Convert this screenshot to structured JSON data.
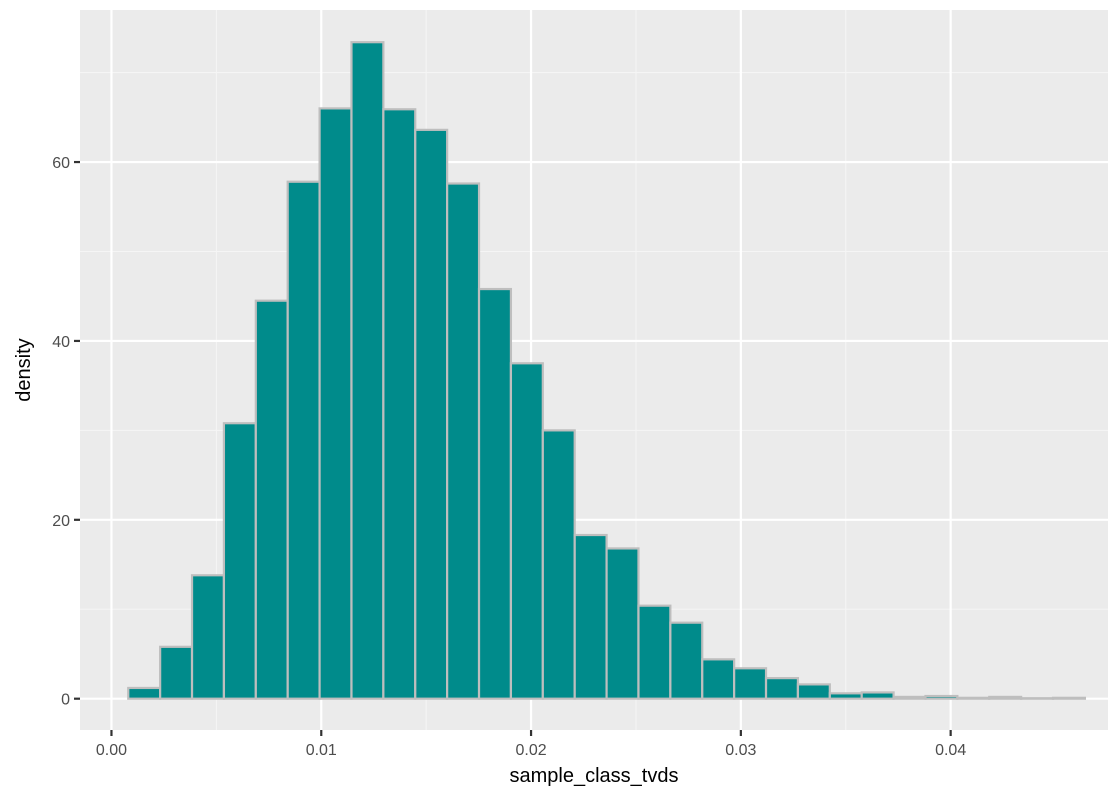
{
  "chart_data": {
    "type": "bar",
    "subtype": "histogram",
    "xlabel": "sample_class_tvds",
    "ylabel": "density",
    "xlim": [
      -0.0015,
      0.0475
    ],
    "ylim": [
      -3.5,
      77
    ],
    "x_ticks": [
      0.0,
      0.01,
      0.02,
      0.03,
      0.04
    ],
    "x_tick_labels": [
      "0.00",
      "0.01",
      "0.02",
      "0.03",
      "0.04"
    ],
    "y_ticks": [
      0,
      20,
      40,
      60
    ],
    "y_tick_labels": [
      "0",
      "20",
      "40",
      "60"
    ],
    "grid": true,
    "bin_width": 0.00152,
    "bins": [
      {
        "x0": 0.0008,
        "x1": 0.00232,
        "density": 1.2
      },
      {
        "x0": 0.00232,
        "x1": 0.00384,
        "density": 5.8
      },
      {
        "x0": 0.00384,
        "x1": 0.00536,
        "density": 13.8
      },
      {
        "x0": 0.00536,
        "x1": 0.00688,
        "density": 30.8
      },
      {
        "x0": 0.00688,
        "x1": 0.0084,
        "density": 44.5
      },
      {
        "x0": 0.0084,
        "x1": 0.00992,
        "density": 57.8
      },
      {
        "x0": 0.00992,
        "x1": 0.01144,
        "density": 66.0
      },
      {
        "x0": 0.01144,
        "x1": 0.01296,
        "density": 73.4
      },
      {
        "x0": 0.01296,
        "x1": 0.01448,
        "density": 65.9
      },
      {
        "x0": 0.01448,
        "x1": 0.016,
        "density": 63.6
      },
      {
        "x0": 0.016,
        "x1": 0.01752,
        "density": 57.6
      },
      {
        "x0": 0.01752,
        "x1": 0.01904,
        "density": 45.8
      },
      {
        "x0": 0.01904,
        "x1": 0.02056,
        "density": 37.5
      },
      {
        "x0": 0.02056,
        "x1": 0.02208,
        "density": 30.0
      },
      {
        "x0": 0.02208,
        "x1": 0.0236,
        "density": 18.3
      },
      {
        "x0": 0.0236,
        "x1": 0.02512,
        "density": 16.8
      },
      {
        "x0": 0.02512,
        "x1": 0.02664,
        "density": 10.4
      },
      {
        "x0": 0.02664,
        "x1": 0.02816,
        "density": 8.5
      },
      {
        "x0": 0.02816,
        "x1": 0.02968,
        "density": 4.4
      },
      {
        "x0": 0.02968,
        "x1": 0.0312,
        "density": 3.4
      },
      {
        "x0": 0.0312,
        "x1": 0.03272,
        "density": 2.3
      },
      {
        "x0": 0.03272,
        "x1": 0.03424,
        "density": 1.6
      },
      {
        "x0": 0.03424,
        "x1": 0.03576,
        "density": 0.6
      },
      {
        "x0": 0.03576,
        "x1": 0.03728,
        "density": 0.7
      },
      {
        "x0": 0.03728,
        "x1": 0.0388,
        "density": 0.2
      },
      {
        "x0": 0.0388,
        "x1": 0.04032,
        "density": 0.3
      },
      {
        "x0": 0.04032,
        "x1": 0.04184,
        "density": 0.1
      },
      {
        "x0": 0.04184,
        "x1": 0.04336,
        "density": 0.2
      },
      {
        "x0": 0.04336,
        "x1": 0.04488,
        "density": 0.05
      },
      {
        "x0": 0.04488,
        "x1": 0.0464,
        "density": 0.1
      }
    ],
    "colors": {
      "panel_background": "#ebebeb",
      "grid_major": "#ffffff",
      "grid_minor": "#f5f5f5",
      "bar_fill": "#008b8b",
      "bar_outline": "#bebebe",
      "tick_mark": "#333333"
    }
  }
}
